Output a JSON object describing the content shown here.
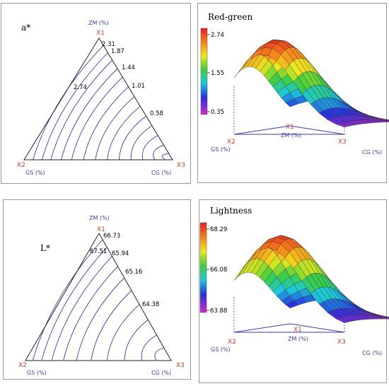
{
  "chart_data": [
    {
      "type": "ternary-contour",
      "symbol": "a*",
      "vertices": [
        {
          "id": "X1",
          "name": "ZM (%)"
        },
        {
          "id": "X2",
          "name": "GS (%)"
        },
        {
          "id": "X3",
          "name": "CG (%)"
        }
      ],
      "contour_labels": [
        "2.31",
        "1.87",
        "1.44",
        "1.01",
        "0.58",
        "2.74"
      ]
    },
    {
      "type": "surface-3d",
      "title": "Red-green",
      "colorbar_ticks": [
        "2.74",
        "1.55",
        "0.35"
      ],
      "colorbar_range": [
        0.35,
        2.74
      ],
      "vertex_labels": [
        "X1",
        "X2",
        "X3"
      ],
      "axis_labels": [
        "ZM (%)",
        "GS (%)",
        "CG (%)"
      ]
    },
    {
      "type": "ternary-contour",
      "symbol": "L*",
      "vertices": [
        {
          "id": "X1",
          "name": "ZM (%)"
        },
        {
          "id": "X2",
          "name": "GS (%)"
        },
        {
          "id": "X3",
          "name": "CG (%)"
        }
      ],
      "contour_labels": [
        "66.73",
        "67.51",
        "65.94",
        "65.16",
        "64.38"
      ]
    },
    {
      "type": "surface-3d",
      "title": "Lightness",
      "colorbar_ticks": [
        "68.29",
        "66.08",
        "63.88"
      ],
      "colorbar_range": [
        63.88,
        68.29
      ],
      "vertex_labels": [
        "X1",
        "X2",
        "X3"
      ],
      "axis_labels": [
        "ZM (%)",
        "GS (%)",
        "CG (%)"
      ]
    }
  ]
}
